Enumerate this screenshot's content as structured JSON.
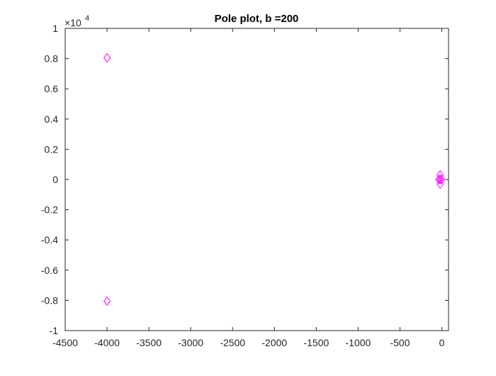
{
  "chart_data": {
    "type": "scatter",
    "title": "Pole plot, b =200",
    "xlabel": "",
    "ylabel": "",
    "xlim": [
      -4500,
      80
    ],
    "ylim": [
      -1,
      1
    ],
    "y_exponent_base": "×10",
    "y_exponent_power": "4",
    "x_ticks": [
      -4500,
      -4000,
      -3500,
      -3000,
      -2500,
      -2000,
      -1500,
      -1000,
      -500,
      0
    ],
    "x_tick_labels": [
      "-4500",
      "-4000",
      "-3500",
      "-3000",
      "-2500",
      "-2000",
      "-1500",
      "-1000",
      "-500",
      "0"
    ],
    "y_ticks": [
      -1,
      -0.8,
      -0.6,
      -0.4,
      -0.2,
      0,
      0.2,
      0.4,
      0.6,
      0.8,
      1
    ],
    "y_tick_labels": [
      "-1",
      "-0.8",
      "-0.6",
      "-0.4",
      "-0.2",
      "0",
      "0.2",
      "0.4",
      "0.6",
      "0.8",
      "1"
    ],
    "grid": false,
    "marker": "diamond",
    "marker_color": "#ff00ff",
    "series": [
      {
        "x": [
          -4000,
          -4000,
          -20,
          -20,
          -35,
          -20,
          -5
        ],
        "y": [
          0.805,
          -0.805,
          0.03,
          -0.03,
          0.0,
          0.0,
          0.0
        ]
      }
    ]
  }
}
